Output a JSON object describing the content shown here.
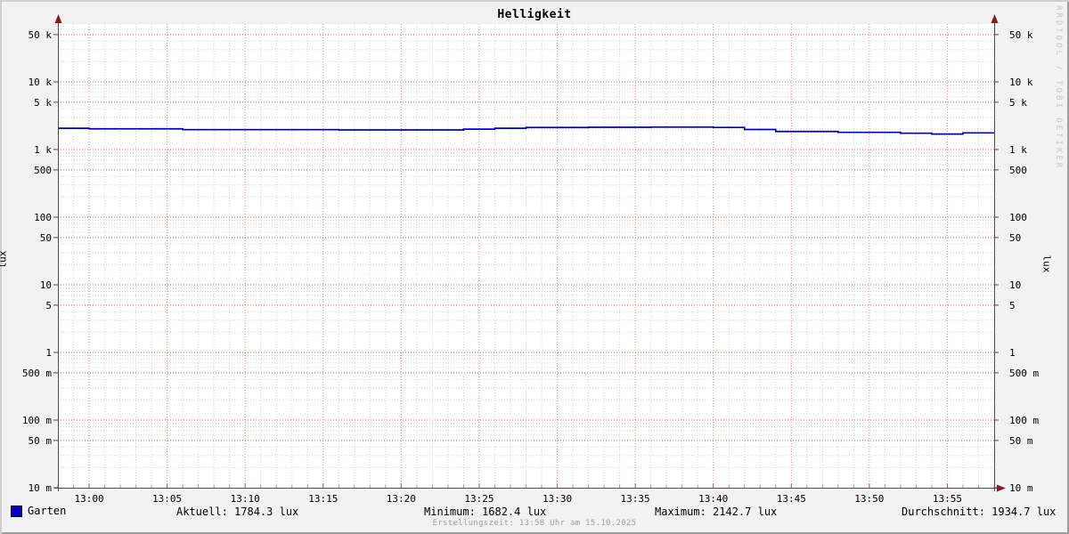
{
  "title": "Helligkeit",
  "watermark": "RRDTOOL / TOBI OETIKER",
  "footer": "Erstellungszeit: 13:58 Uhr am 15.10.2025",
  "y_axis": {
    "label_left": "lux",
    "label_right": "lux"
  },
  "legend": {
    "label": "Garten",
    "color": "#0000cc"
  },
  "stats": [
    {
      "label": "Aktuell",
      "value": 1784.3,
      "unit": "lux",
      "display": "Aktuell: 1784.3 lux"
    },
    {
      "label": "Minimum",
      "value": 1682.4,
      "unit": "lux",
      "display": "Minimum: 1682.4 lux"
    },
    {
      "label": "Maximum",
      "value": 2142.7,
      "unit": "lux",
      "display": "Maximum: 2142.7 lux"
    },
    {
      "label": "Durchschnitt",
      "value": 1934.7,
      "unit": "lux",
      "display": "Durchschnitt: 1934.7 lux"
    }
  ],
  "colors": {
    "line": "#0000cc",
    "minor_grid": "#d2d2d2",
    "major_grid": "#e06666",
    "axis": "#4d4d4d",
    "arrow": "#8b1c1c",
    "canvas": "#ffffff",
    "background": "#f2f2f2",
    "tick_minor": "#a0a0a0",
    "tick_major": "#c05050"
  },
  "chart_data": {
    "type": "line",
    "title": "Helligkeit",
    "ylabel": "lux",
    "yscale": "log",
    "ylim": [
      0.01,
      71600
    ],
    "xlim": [
      "12:58",
      "13:58"
    ],
    "grid": "on",
    "legend_position": "bottom-left",
    "y_ticks": [
      {
        "label": "50 k",
        "v": 50000
      },
      {
        "label": "10 k",
        "v": 10000
      },
      {
        "label": "5 k",
        "v": 5000
      },
      {
        "label": "1 k",
        "v": 1000
      },
      {
        "label": "500",
        "v": 500
      },
      {
        "label": "100",
        "v": 100
      },
      {
        "label": "50",
        "v": 50
      },
      {
        "label": "10",
        "v": 10
      },
      {
        "label": "5",
        "v": 5
      },
      {
        "label": "1",
        "v": 1
      },
      {
        "label": "500 m",
        "v": 0.5
      },
      {
        "label": "100 m",
        "v": 0.1
      },
      {
        "label": "50 m",
        "v": 0.05
      },
      {
        "label": "10 m",
        "v": 0.01
      }
    ],
    "x_ticks": [
      "13:00",
      "13:05",
      "13:10",
      "13:15",
      "13:20",
      "13:25",
      "13:30",
      "13:35",
      "13:40",
      "13:45",
      "13:50",
      "13:55"
    ],
    "x_major_grid_every_min": 5,
    "x_minor_grid_every_min": 1,
    "series": [
      {
        "name": "Garten",
        "color": "#0000cc",
        "style": "step",
        "points": [
          {
            "t": "12:58",
            "v": 2060
          },
          {
            "t": "13:00",
            "v": 2020
          },
          {
            "t": "13:06",
            "v": 1965
          },
          {
            "t": "13:16",
            "v": 1945
          },
          {
            "t": "13:24",
            "v": 2000
          },
          {
            "t": "13:26",
            "v": 2060
          },
          {
            "t": "13:28",
            "v": 2115
          },
          {
            "t": "13:32",
            "v": 2130
          },
          {
            "t": "13:36",
            "v": 2142
          },
          {
            "t": "13:40",
            "v": 2120
          },
          {
            "t": "13:42",
            "v": 1975
          },
          {
            "t": "13:44",
            "v": 1845
          },
          {
            "t": "13:48",
            "v": 1795
          },
          {
            "t": "13:52",
            "v": 1740
          },
          {
            "t": "13:54",
            "v": 1690
          },
          {
            "t": "13:56",
            "v": 1760
          },
          {
            "t": "13:58",
            "v": 1784
          }
        ]
      }
    ],
    "stats": {
      "aktuell": 1784.3,
      "minimum": 1682.4,
      "maximum": 2142.7,
      "durchschnitt": 1934.7
    }
  }
}
